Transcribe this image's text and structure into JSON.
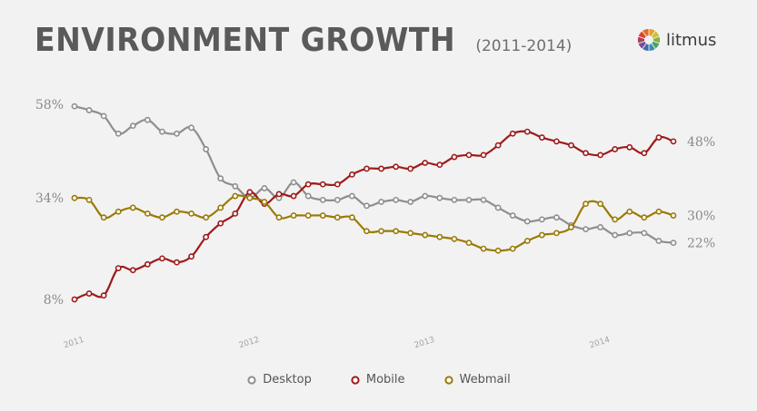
{
  "header": {
    "title": "ENVIRONMENT GROWTH",
    "subtitle": "(2011-2014)",
    "brand": "litmus",
    "logo_colors": [
      "#e4a128",
      "#c9c33b",
      "#8cae42",
      "#49a46a",
      "#3a8fa8",
      "#4667a8",
      "#7a4f98",
      "#b03f55",
      "#d9482e",
      "#e36b2a"
    ]
  },
  "chart_data": {
    "type": "line",
    "title": "ENVIRONMENT GROWTH (2011-2014)",
    "xlabel": "",
    "ylabel": "",
    "ylim": [
      8,
      58
    ],
    "grid": false,
    "y_tick_labels": [
      {
        "value": 58,
        "label": "58%"
      },
      {
        "value": 34,
        "label": "34%"
      },
      {
        "value": 8,
        "label": "8%"
      }
    ],
    "x_tick_labels": [
      {
        "index": 0,
        "label": "2011"
      },
      {
        "index": 12,
        "label": "2012"
      },
      {
        "index": 24,
        "label": "2013"
      },
      {
        "index": 36,
        "label": "2014"
      }
    ],
    "series": [
      {
        "name": "Desktop",
        "color": "#8e8e8e",
        "end_label": "22%",
        "values": [
          57.5,
          56.5,
          55.0,
          50.5,
          52.5,
          54.0,
          51.0,
          50.5,
          52.0,
          46.5,
          39.0,
          37.0,
          34.0,
          36.5,
          34.0,
          38.0,
          34.5,
          33.5,
          33.5,
          34.5,
          32.0,
          33.0,
          33.5,
          33.0,
          34.5,
          34.0,
          33.5,
          33.5,
          33.5,
          31.5,
          29.5,
          28.0,
          28.5,
          29.0,
          27.0,
          26.0,
          26.5,
          24.5,
          25.0,
          25.0,
          23.0,
          22.5
        ]
      },
      {
        "name": "Mobile",
        "color": "#9e1b1b",
        "end_label": "48%",
        "values": [
          8.0,
          9.5,
          9.0,
          16.0,
          15.5,
          17.0,
          18.5,
          17.5,
          19.0,
          24.0,
          27.5,
          30.0,
          35.5,
          32.5,
          35.0,
          34.5,
          37.5,
          37.5,
          37.5,
          40.0,
          41.5,
          41.5,
          42.0,
          41.5,
          43.0,
          42.5,
          44.5,
          45.0,
          45.0,
          47.5,
          50.5,
          51.0,
          49.5,
          48.5,
          47.5,
          45.5,
          45.0,
          46.5,
          47.0,
          45.5,
          49.5,
          48.5
        ]
      },
      {
        "name": "Webmail",
        "color": "#9a7a06",
        "end_label": "30%",
        "values": [
          34.0,
          33.5,
          29.0,
          30.5,
          31.5,
          30.0,
          29.0,
          30.5,
          30.0,
          29.0,
          31.5,
          34.5,
          34.0,
          33.0,
          29.0,
          29.5,
          29.5,
          29.5,
          29.0,
          29.0,
          25.5,
          25.5,
          25.5,
          25.0,
          24.5,
          24.0,
          23.5,
          22.5,
          21.0,
          20.5,
          21.0,
          23.0,
          24.5,
          25.0,
          26.5,
          32.5,
          32.5,
          28.5,
          30.5,
          29.0,
          30.5,
          29.5
        ]
      }
    ],
    "legend": {
      "position": "bottom-center"
    }
  }
}
